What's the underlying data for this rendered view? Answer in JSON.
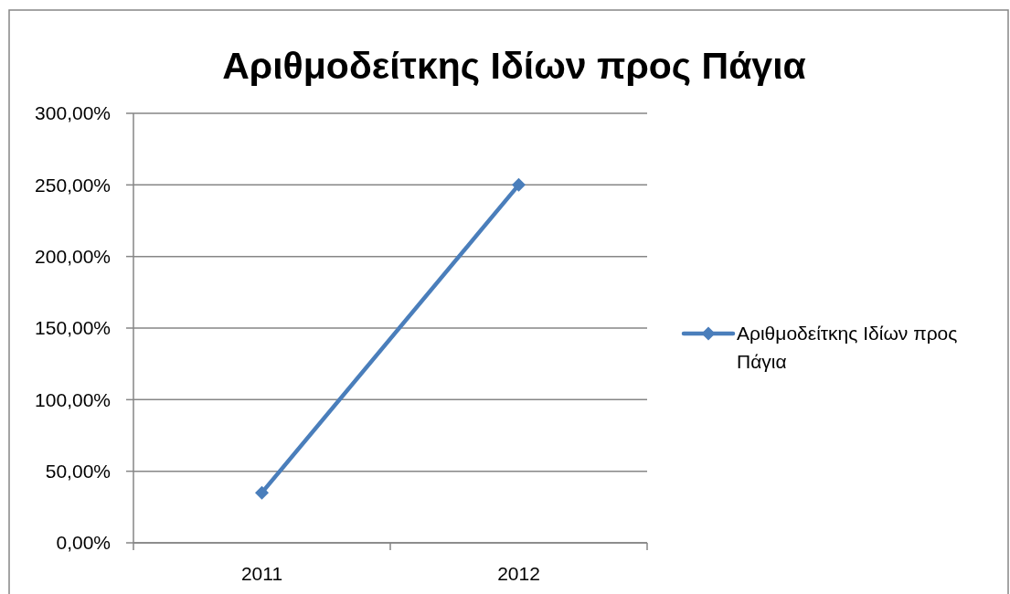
{
  "chart_data": {
    "type": "line",
    "title": "Αριθμοδείτκης Ιδίων προς Πάγια",
    "categories": [
      "2011",
      "2012"
    ],
    "series": [
      {
        "name": "Αριθμοδείτκης Ιδίων προς Πάγια",
        "color": "#4a7ebb",
        "values": [
          35,
          250
        ]
      }
    ],
    "ylim": [
      0,
      300
    ],
    "yticks": [
      {
        "value": 0,
        "label": "0,00%"
      },
      {
        "value": 50,
        "label": "50,00%"
      },
      {
        "value": 100,
        "label": "100,00%"
      },
      {
        "value": 150,
        "label": "150,00%"
      },
      {
        "value": 200,
        "label": "200,00%"
      },
      {
        "value": 250,
        "label": "250,00%"
      },
      {
        "value": 300,
        "label": "300,00%"
      }
    ],
    "grid": "y",
    "legend": "right",
    "marker": "diamond",
    "line_style": "solid"
  }
}
